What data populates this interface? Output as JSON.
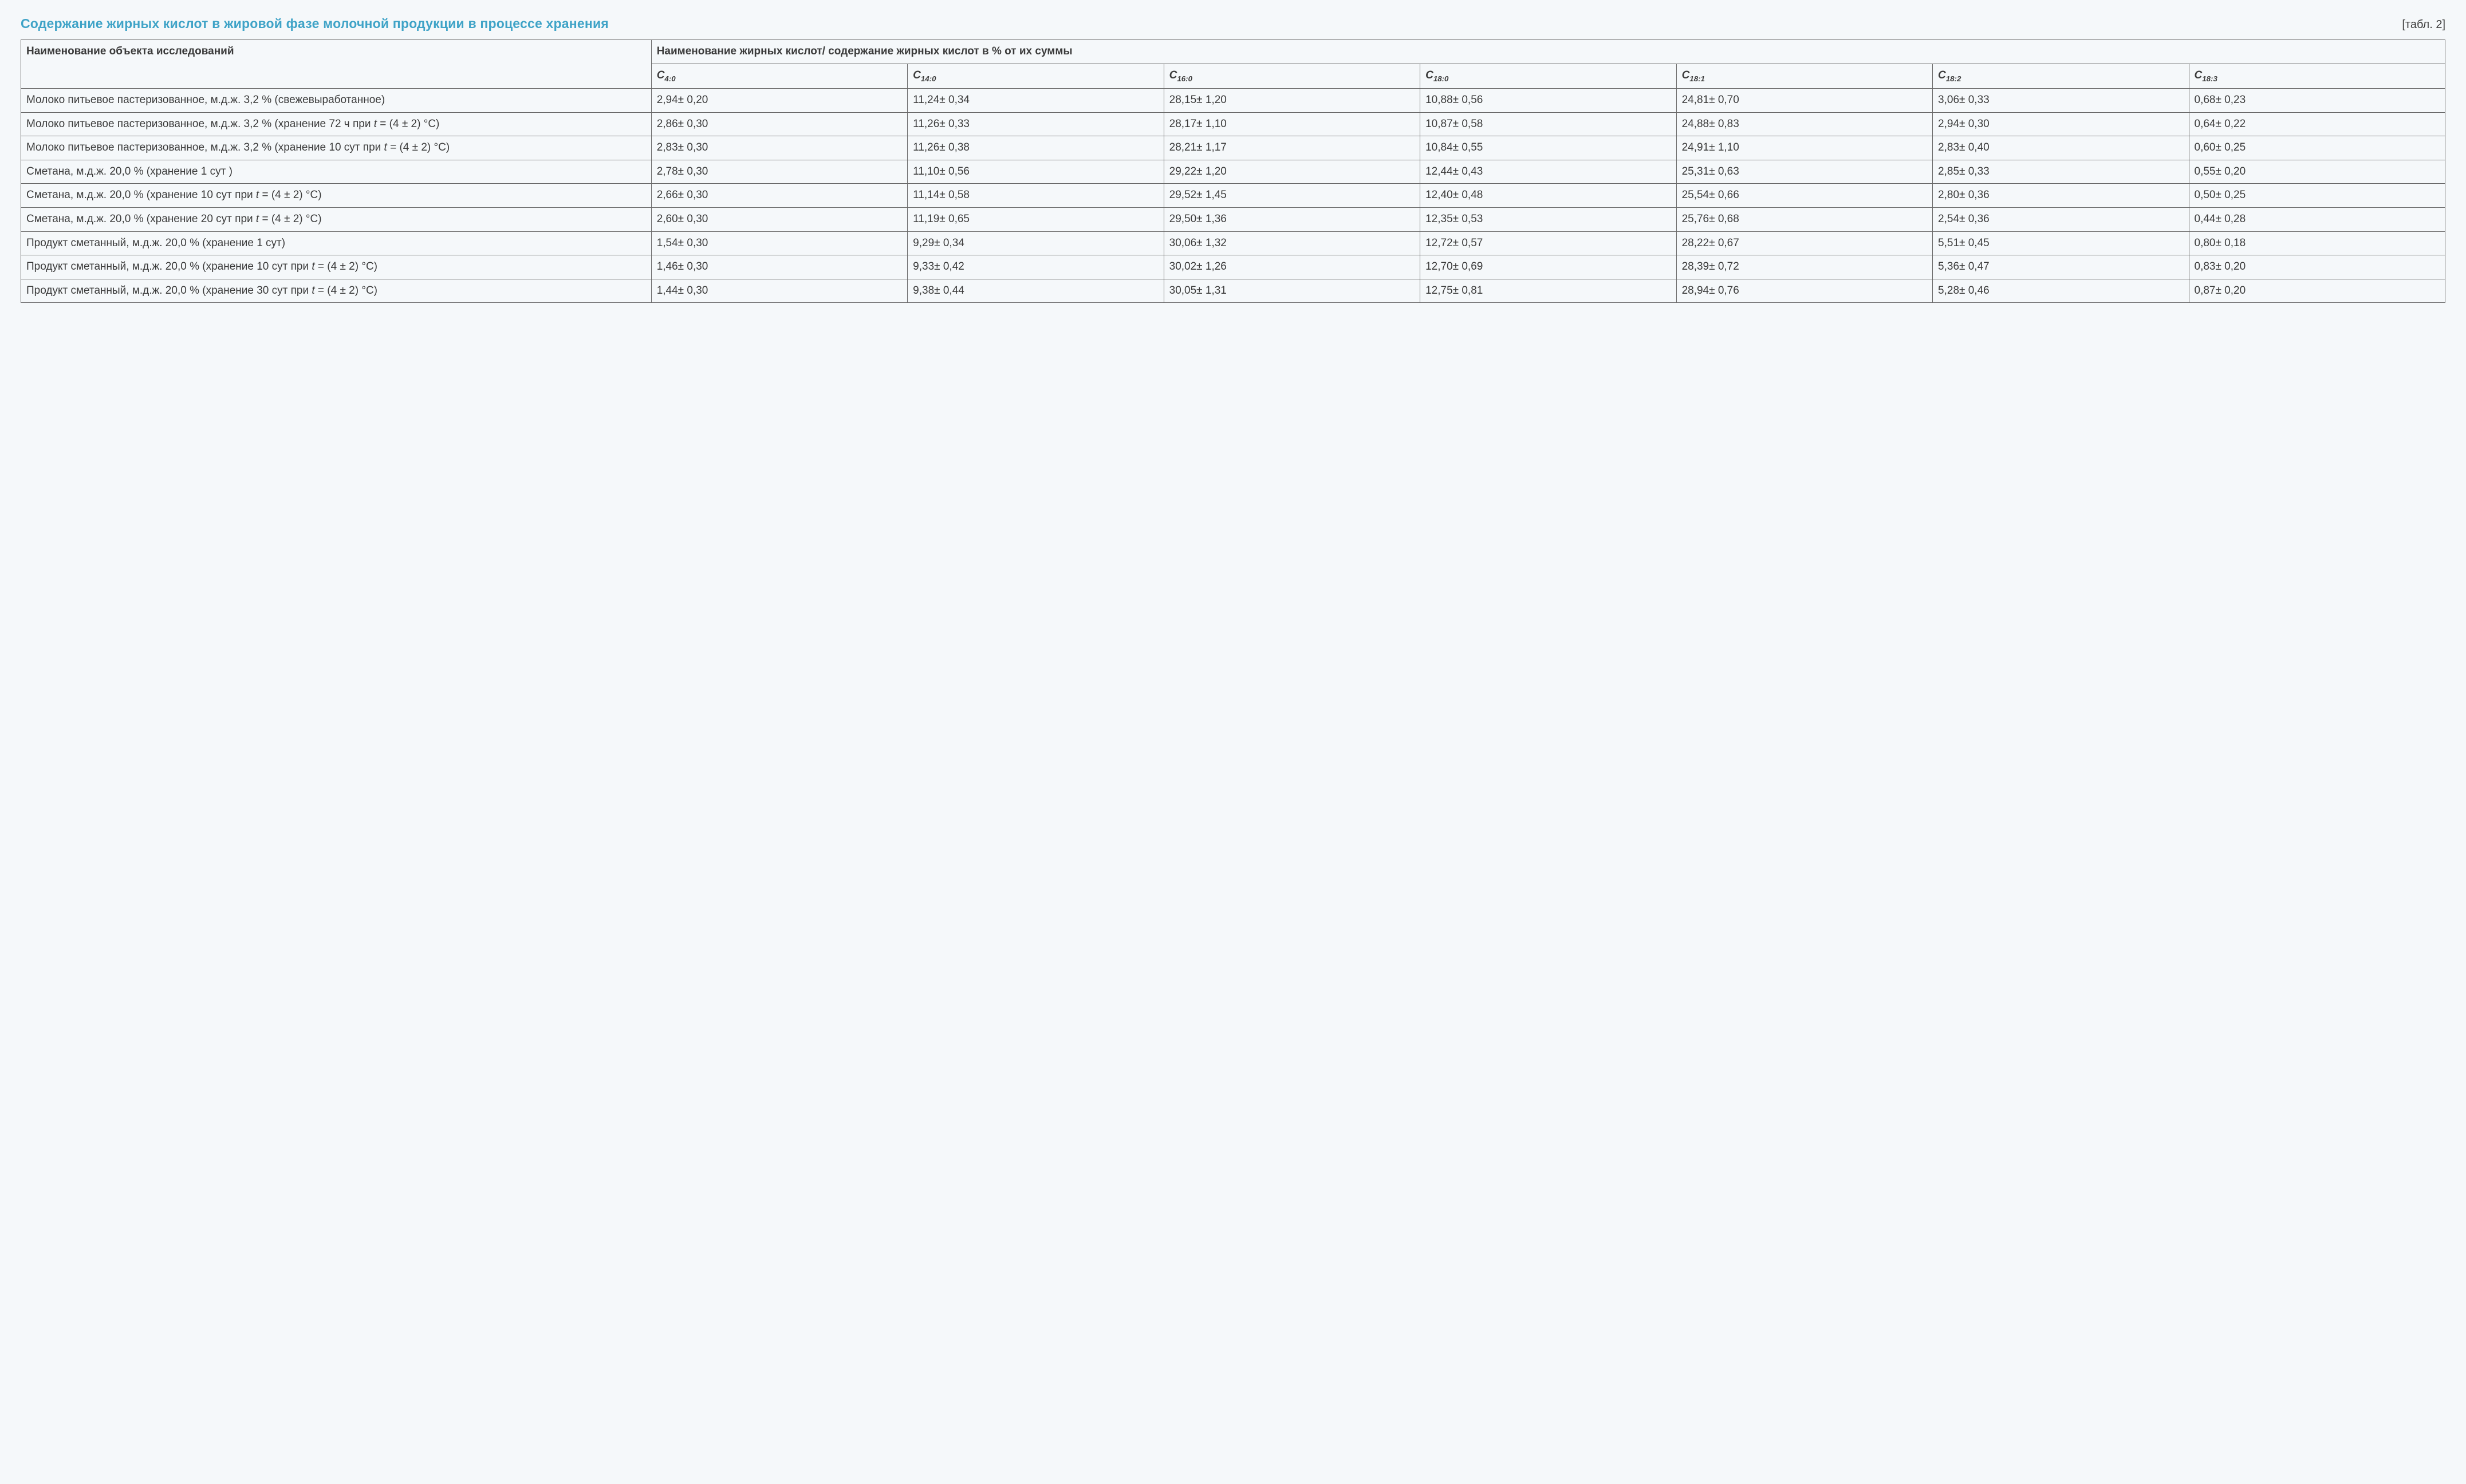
{
  "header": {
    "title": "Содержание жирных кислот в жировой фазе молочной продукции в процессе хранения",
    "table_label": "[табл. 2]"
  },
  "table": {
    "type": "table",
    "background_color": "#f5f8fa",
    "border_color": "#6a6a6a",
    "title_color": "#3fa3c7",
    "text_color": "#3b3b3b",
    "font_size_pt": 14,
    "header_name": "Наименование объекта исследований",
    "header_span": "Наименование жирных кислот/ содержание жирных кислот в % от их суммы",
    "columns": [
      {
        "main": "C",
        "sub": "4:0"
      },
      {
        "main": "C",
        "sub": "14:0"
      },
      {
        "main": "C",
        "sub": "16:0"
      },
      {
        "main": "C",
        "sub": "18:0"
      },
      {
        "main": "C",
        "sub": "18:1"
      },
      {
        "main": "C",
        "sub": "18:2"
      },
      {
        "main": "C",
        "sub": "18:3"
      }
    ],
    "rows": [
      {
        "name_parts": [
          "Молоко питьевое пастеризованное, м.д.ж. 3,2 % (свежевыработанное)"
        ],
        "italic_pos": null,
        "c": [
          "2,94± 0,20",
          "11,24± 0,34",
          "28,15± 1,20",
          "10,88± 0,56",
          "24,81± 0,70",
          "3,06± 0,33",
          "0,68± 0,23"
        ]
      },
      {
        "name_parts": [
          "Молоко питьевое пастеризованное, м.д.ж. 3,2 % (хранение 72 ч при ",
          "t",
          " = (4 ± 2) °C)"
        ],
        "italic_pos": 1,
        "c": [
          "2,86± 0,30",
          "11,26± 0,33",
          "28,17± 1,10",
          "10,87± 0,58",
          "24,88± 0,83",
          "2,94± 0,30",
          "0,64± 0,22"
        ]
      },
      {
        "name_parts": [
          "Молоко питьевое пастеризованное, м.д.ж. 3,2 % (хранение 10 сут при ",
          "t",
          " = (4 ± 2) °C)"
        ],
        "italic_pos": 1,
        "c": [
          "2,83± 0,30",
          "11,26± 0,38",
          "28,21± 1,17",
          "10,84± 0,55",
          "24,91± 1,10",
          "2,83± 0,40",
          "0,60± 0,25"
        ]
      },
      {
        "name_parts": [
          "Сметана, м.д.ж. 20,0 % (хранение 1 сут )"
        ],
        "italic_pos": null,
        "c": [
          "2,78± 0,30",
          "11,10± 0,56",
          "29,22± 1,20",
          "12,44± 0,43",
          "25,31± 0,63",
          "2,85± 0,33",
          "0,55± 0,20"
        ]
      },
      {
        "name_parts": [
          "Сметана, м.д.ж. 20,0 % (хранение 10 сут при ",
          "t",
          " = (4 ± 2) °C)"
        ],
        "italic_pos": 1,
        "c": [
          "2,66± 0,30",
          "11,14± 0,58",
          "29,52± 1,45",
          "12,40± 0,48",
          "25,54± 0,66",
          "2,80± 0,36",
          "0,50± 0,25"
        ]
      },
      {
        "name_parts": [
          "Сметана, м.д.ж. 20,0 % (хранение 20 сут при ",
          "t",
          " = (4 ± 2) °C)"
        ],
        "italic_pos": 1,
        "c": [
          "2,60± 0,30",
          "11,19± 0,65",
          "29,50± 1,36",
          "12,35± 0,53",
          "25,76± 0,68",
          "2,54± 0,36",
          "0,44± 0,28"
        ]
      },
      {
        "name_parts": [
          "Продукт сметанный, м.д.ж. 20,0 % (хранение 1 сут)"
        ],
        "italic_pos": null,
        "c": [
          "1,54± 0,30",
          "9,29± 0,34",
          "30,06± 1,32",
          "12,72± 0,57",
          "28,22± 0,67",
          "5,51± 0,45",
          "0,80± 0,18"
        ]
      },
      {
        "name_parts": [
          "Продукт сметанный, м.д.ж. 20,0 % (хранение 10 сут при ",
          "t",
          " = (4 ± 2) °C)"
        ],
        "italic_pos": 1,
        "c": [
          "1,46± 0,30",
          "9,33± 0,42",
          "30,02± 1,26",
          "12,70± 0,69",
          "28,39± 0,72",
          "5,36± 0,47",
          "0,83± 0,20"
        ]
      },
      {
        "name_parts": [
          "Продукт сметанный, м.д.ж. 20,0 % (хранение 30 сут при ",
          "t",
          " = (4 ± 2) °C)"
        ],
        "italic_pos": 1,
        "c": [
          "1,44± 0,30",
          "9,38± 0,44",
          "30,05± 1,31",
          "12,75± 0,81",
          "28,94± 0,76",
          "5,28± 0,46",
          "0,87± 0,20"
        ]
      }
    ]
  }
}
